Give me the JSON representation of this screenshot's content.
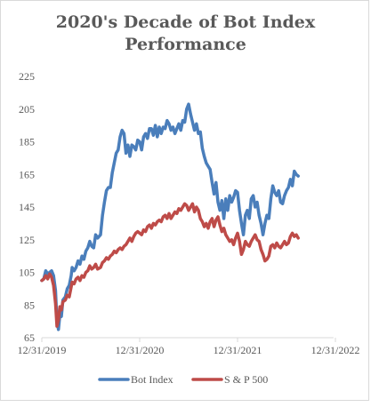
{
  "chart_data": {
    "type": "line",
    "title_line1": "2020's Decade of Bot Index",
    "title_line2": "Performance",
    "xlabel": "",
    "ylabel": "",
    "ylim": [
      65,
      225
    ],
    "y_ticks": [
      65,
      85,
      105,
      125,
      145,
      165,
      185,
      205,
      225
    ],
    "x_tick_labels": [
      "12/31/2019",
      "12/31/2020",
      "12/31/2021",
      "12/31/2022"
    ],
    "x_tick_years": [
      0,
      1,
      2,
      3
    ],
    "x_end_year": 2.98,
    "grid": false,
    "legend_position": "bottom",
    "series": [
      {
        "name": "Bot Index",
        "color": "#4a7ebb",
        "points": [
          [
            0.0,
            100
          ],
          [
            0.02,
            101
          ],
          [
            0.04,
            106
          ],
          [
            0.06,
            104
          ],
          [
            0.08,
            105
          ],
          [
            0.1,
            106
          ],
          [
            0.12,
            103
          ],
          [
            0.14,
            94
          ],
          [
            0.155,
            75
          ],
          [
            0.17,
            70
          ],
          [
            0.185,
            79
          ],
          [
            0.2,
            78
          ],
          [
            0.215,
            88
          ],
          [
            0.24,
            90
          ],
          [
            0.26,
            95
          ],
          [
            0.28,
            97
          ],
          [
            0.3,
            103
          ],
          [
            0.31,
            108
          ],
          [
            0.33,
            106
          ],
          [
            0.35,
            108
          ],
          [
            0.37,
            112
          ],
          [
            0.39,
            110
          ],
          [
            0.41,
            115
          ],
          [
            0.43,
            113
          ],
          [
            0.45,
            118
          ],
          [
            0.47,
            120
          ],
          [
            0.49,
            124
          ],
          [
            0.51,
            121
          ],
          [
            0.53,
            120
          ],
          [
            0.55,
            128
          ],
          [
            0.57,
            126
          ],
          [
            0.6,
            128
          ],
          [
            0.62,
            140
          ],
          [
            0.64,
            148
          ],
          [
            0.66,
            155
          ],
          [
            0.68,
            157
          ],
          [
            0.7,
            157
          ],
          [
            0.72,
            166
          ],
          [
            0.74,
            172
          ],
          [
            0.76,
            178
          ],
          [
            0.78,
            180
          ],
          [
            0.8,
            188
          ],
          [
            0.82,
            192
          ],
          [
            0.84,
            190
          ],
          [
            0.86,
            178
          ],
          [
            0.88,
            183
          ],
          [
            0.9,
            176
          ],
          [
            0.92,
            183
          ],
          [
            0.94,
            182
          ],
          [
            0.96,
            180
          ],
          [
            0.98,
            186
          ],
          [
            1.0,
            185
          ],
          [
            1.02,
            180
          ],
          [
            1.04,
            188
          ],
          [
            1.06,
            190
          ],
          [
            1.08,
            187
          ],
          [
            1.1,
            193
          ],
          [
            1.12,
            193
          ],
          [
            1.14,
            189
          ],
          [
            1.16,
            195
          ],
          [
            1.18,
            188
          ],
          [
            1.2,
            194
          ],
          [
            1.22,
            190
          ],
          [
            1.24,
            194
          ],
          [
            1.26,
            193
          ],
          [
            1.28,
            198
          ],
          [
            1.3,
            196
          ],
          [
            1.32,
            192
          ],
          [
            1.34,
            194
          ],
          [
            1.36,
            190
          ],
          [
            1.38,
            193
          ],
          [
            1.4,
            196
          ],
          [
            1.42,
            192
          ],
          [
            1.44,
            198
          ],
          [
            1.46,
            197
          ],
          [
            1.48,
            205
          ],
          [
            1.5,
            208
          ],
          [
            1.52,
            202
          ],
          [
            1.54,
            197
          ],
          [
            1.56,
            192
          ],
          [
            1.58,
            196
          ],
          [
            1.6,
            190
          ],
          [
            1.62,
            191
          ],
          [
            1.64,
            181
          ],
          [
            1.66,
            176
          ],
          [
            1.68,
            172
          ],
          [
            1.7,
            170
          ],
          [
            1.72,
            168
          ],
          [
            1.74,
            160
          ],
          [
            1.76,
            153
          ],
          [
            1.78,
            160
          ],
          [
            1.8,
            148
          ],
          [
            1.82,
            143
          ],
          [
            1.84,
            149
          ],
          [
            1.86,
            138
          ],
          [
            1.88,
            150
          ],
          [
            1.9,
            143
          ],
          [
            1.92,
            152
          ],
          [
            1.94,
            148
          ],
          [
            1.96,
            151
          ],
          [
            1.98,
            155
          ],
          [
            2.0,
            154
          ],
          [
            2.02,
            143
          ],
          [
            2.04,
            135
          ],
          [
            2.06,
            128
          ],
          [
            2.08,
            140
          ],
          [
            2.1,
            143
          ],
          [
            2.12,
            138
          ],
          [
            2.14,
            150
          ],
          [
            2.16,
            152
          ],
          [
            2.18,
            145
          ],
          [
            2.2,
            148
          ],
          [
            2.22,
            140
          ],
          [
            2.24,
            135
          ],
          [
            2.26,
            128
          ],
          [
            2.28,
            135
          ],
          [
            2.3,
            140
          ],
          [
            2.32,
            138
          ],
          [
            2.34,
            150
          ],
          [
            2.36,
            158
          ],
          [
            2.38,
            154
          ],
          [
            2.4,
            152
          ],
          [
            2.42,
            155
          ],
          [
            2.44,
            148
          ],
          [
            2.46,
            147
          ],
          [
            2.48,
            152
          ],
          [
            2.5,
            155
          ],
          [
            2.52,
            157
          ],
          [
            2.54,
            162
          ],
          [
            2.56,
            158
          ],
          [
            2.58,
            167
          ],
          [
            2.6,
            165
          ],
          [
            2.62,
            164
          ]
        ]
      },
      {
        "name": "S & P 500",
        "color": "#be4b48",
        "points": [
          [
            0.0,
            100
          ],
          [
            0.02,
            101
          ],
          [
            0.04,
            103
          ],
          [
            0.06,
            101
          ],
          [
            0.08,
            104
          ],
          [
            0.1,
            102
          ],
          [
            0.12,
            97
          ],
          [
            0.14,
            86
          ],
          [
            0.155,
            72
          ],
          [
            0.17,
            76
          ],
          [
            0.185,
            84
          ],
          [
            0.2,
            82
          ],
          [
            0.215,
            87
          ],
          [
            0.24,
            88
          ],
          [
            0.26,
            91
          ],
          [
            0.28,
            90
          ],
          [
            0.3,
            96
          ],
          [
            0.31,
            99
          ],
          [
            0.33,
            98
          ],
          [
            0.35,
            101
          ],
          [
            0.37,
            102
          ],
          [
            0.39,
            100
          ],
          [
            0.41,
            103
          ],
          [
            0.43,
            102
          ],
          [
            0.45,
            105
          ],
          [
            0.47,
            106
          ],
          [
            0.49,
            109
          ],
          [
            0.51,
            107
          ],
          [
            0.53,
            108
          ],
          [
            0.55,
            110
          ],
          [
            0.57,
            107
          ],
          [
            0.6,
            108
          ],
          [
            0.62,
            111
          ],
          [
            0.64,
            112
          ],
          [
            0.66,
            114
          ],
          [
            0.68,
            113
          ],
          [
            0.7,
            115
          ],
          [
            0.72,
            116
          ],
          [
            0.74,
            118
          ],
          [
            0.76,
            117
          ],
          [
            0.78,
            119
          ],
          [
            0.8,
            120
          ],
          [
            0.82,
            119
          ],
          [
            0.84,
            121
          ],
          [
            0.86,
            122
          ],
          [
            0.88,
            124
          ],
          [
            0.9,
            126
          ],
          [
            0.92,
            124
          ],
          [
            0.94,
            127
          ],
          [
            0.96,
            129
          ],
          [
            0.98,
            130
          ],
          [
            1.0,
            129
          ],
          [
            1.02,
            128
          ],
          [
            1.04,
            131
          ],
          [
            1.06,
            130
          ],
          [
            1.08,
            133
          ],
          [
            1.1,
            134
          ],
          [
            1.12,
            132
          ],
          [
            1.14,
            135
          ],
          [
            1.16,
            134
          ],
          [
            1.18,
            136
          ],
          [
            1.2,
            137
          ],
          [
            1.22,
            136
          ],
          [
            1.24,
            139
          ],
          [
            1.26,
            140
          ],
          [
            1.28,
            138
          ],
          [
            1.3,
            141
          ],
          [
            1.32,
            138
          ],
          [
            1.34,
            140
          ],
          [
            1.36,
            142
          ],
          [
            1.38,
            141
          ],
          [
            1.4,
            144
          ],
          [
            1.42,
            143
          ],
          [
            1.44,
            145
          ],
          [
            1.46,
            147
          ],
          [
            1.48,
            146
          ],
          [
            1.5,
            143
          ],
          [
            1.52,
            145
          ],
          [
            1.54,
            147
          ],
          [
            1.56,
            142
          ],
          [
            1.58,
            145
          ],
          [
            1.6,
            143
          ],
          [
            1.62,
            138
          ],
          [
            1.64,
            136
          ],
          [
            1.66,
            133
          ],
          [
            1.68,
            135
          ],
          [
            1.7,
            132
          ],
          [
            1.72,
            136
          ],
          [
            1.74,
            138
          ],
          [
            1.76,
            133
          ],
          [
            1.78,
            137
          ],
          [
            1.8,
            139
          ],
          [
            1.82,
            134
          ],
          [
            1.84,
            130
          ],
          [
            1.86,
            132
          ],
          [
            1.88,
            128
          ],
          [
            1.9,
            126
          ],
          [
            1.92,
            124
          ],
          [
            1.94,
            125
          ],
          [
            1.96,
            122
          ],
          [
            1.98,
            126
          ],
          [
            2.0,
            129
          ],
          [
            2.02,
            124
          ],
          [
            2.04,
            116
          ],
          [
            2.06,
            119
          ],
          [
            2.08,
            124
          ],
          [
            2.1,
            122
          ],
          [
            2.12,
            121
          ],
          [
            2.14,
            124
          ],
          [
            2.16,
            126
          ],
          [
            2.18,
            128
          ],
          [
            2.2,
            125
          ],
          [
            2.22,
            124
          ],
          [
            2.24,
            119
          ],
          [
            2.26,
            116
          ],
          [
            2.28,
            112
          ],
          [
            2.3,
            113
          ],
          [
            2.32,
            115
          ],
          [
            2.34,
            121
          ],
          [
            2.36,
            122
          ],
          [
            2.38,
            120
          ],
          [
            2.4,
            123
          ],
          [
            2.42,
            121
          ],
          [
            2.44,
            120
          ],
          [
            2.46,
            122
          ],
          [
            2.48,
            124
          ],
          [
            2.5,
            122
          ],
          [
            2.52,
            123
          ],
          [
            2.54,
            127
          ],
          [
            2.56,
            129
          ],
          [
            2.58,
            127
          ],
          [
            2.6,
            128
          ],
          [
            2.62,
            126
          ]
        ]
      }
    ]
  }
}
